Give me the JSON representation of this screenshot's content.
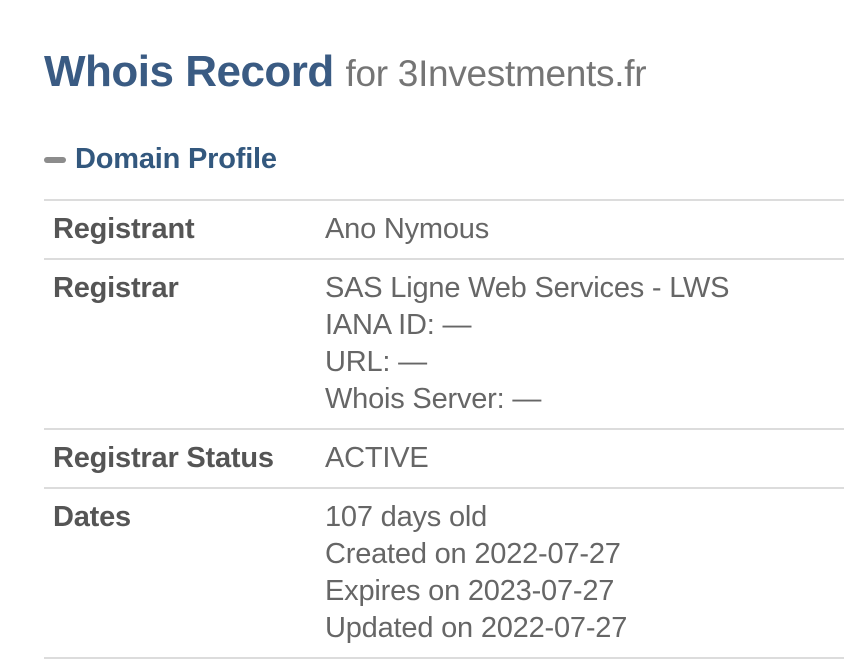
{
  "title": {
    "main": "Whois Record",
    "rest": "for 3Investments.fr"
  },
  "section": {
    "label": "Domain Profile",
    "collapse_icon": "minus-icon",
    "collapsed": false
  },
  "table": {
    "rows": [
      {
        "label": "Registrant",
        "lines": [
          "Ano Nymous"
        ]
      },
      {
        "label": "Registrar",
        "lines": [
          "SAS Ligne Web Services - LWS",
          "IANA ID: —",
          "URL: —",
          "Whois Server: —"
        ]
      },
      {
        "label": "Registrar Status",
        "lines": [
          "ACTIVE"
        ]
      },
      {
        "label": "Dates",
        "lines": [
          "107 days old",
          "Created on 2022-07-27",
          "Expires on 2023-07-27",
          "Updated on 2022-07-27"
        ]
      }
    ]
  },
  "colors": {
    "title_blue": "#3a5b83",
    "title_gray": "#757575",
    "section_blue": "#33587e",
    "minus_gray": "#8c8c8c",
    "label_gray": "#555555",
    "value_gray": "#666666",
    "border_gray": "#dcdcdc",
    "background": "#ffffff"
  }
}
